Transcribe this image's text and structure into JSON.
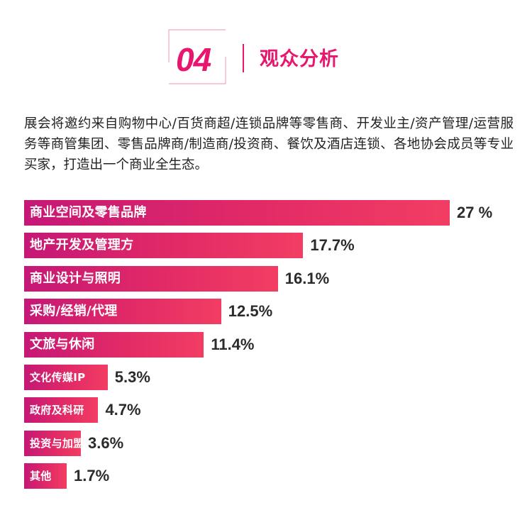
{
  "header": {
    "section_number": "04",
    "title": "观众分析"
  },
  "intro": {
    "text": "展会将邀约来自购物中心/百货商超/连锁品牌等零售商、开发业主/资产管理/运营服务等商管集团、零售品牌商/制造商/投资商、餐饮及酒店连锁、各地协会成员等专业买家，打造出一个商业全生态。"
  },
  "colors": {
    "accent": "#e8166c",
    "bar_start": "#c51876",
    "bar_end": "#f23d63",
    "value_text": "#2b2b2b"
  },
  "chart_data": {
    "type": "bar",
    "orientation": "horizontal",
    "categories": [
      "商业空间及零售品牌",
      "地产开发及管理方",
      "商业设计与照明",
      "采购/经销/代理",
      "文旅与休闲",
      "文化传媒IP",
      "政府及科研",
      "投资与加盟",
      "其他"
    ],
    "values": [
      27,
      17.7,
      16.1,
      12.5,
      11.4,
      5.3,
      4.7,
      3.6,
      1.7
    ],
    "value_labels": [
      "27 %",
      "17.7%",
      "16.1%",
      "12.5%",
      "11.4%",
      "5.3%",
      "4.7%",
      "3.6%",
      "1.7%"
    ],
    "unit": "%",
    "title": "",
    "xlabel": "",
    "ylabel": "",
    "grid": false,
    "legend": "none"
  }
}
